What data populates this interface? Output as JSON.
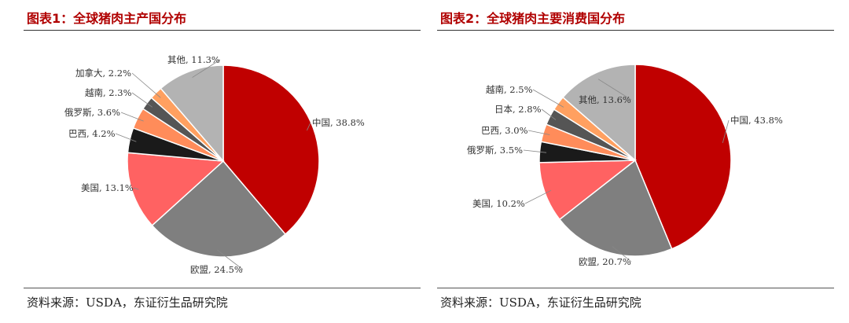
{
  "chart_data": [
    {
      "type": "pie",
      "title": "图表1：全球猪肉主产国分布",
      "source": "资料来源：USDA，东证衍生品研究院",
      "labels": [
        "中国",
        "欧盟",
        "美国",
        "巴西",
        "俄罗斯",
        "越南",
        "加拿大",
        "其他"
      ],
      "values": [
        38.8,
        24.5,
        13.1,
        4.2,
        3.6,
        2.3,
        2.2,
        11.3
      ],
      "value_labels": [
        "38.8%",
        "24.5%",
        "13.1%",
        "4.2%",
        "3.6%",
        "2.3%",
        "2.2%",
        "11.3%"
      ],
      "colors": [
        "#c00000",
        "#7f7f7f",
        "#ff6262",
        "#1a1a1a",
        "#ff8c5a",
        "#555555",
        "#ffa060",
        "#b3b3b3"
      ],
      "start": "12 o'clock",
      "direction": "clockwise"
    },
    {
      "type": "pie",
      "title": "图表2：全球猪肉主要消费国分布",
      "source": "资料来源：USDA，东证衍生品研究院",
      "labels": [
        "中国",
        "欧盟",
        "美国",
        "俄罗斯",
        "巴西",
        "日本",
        "越南",
        "其他"
      ],
      "values": [
        43.8,
        20.7,
        10.2,
        3.5,
        3.0,
        2.8,
        2.5,
        13.6
      ],
      "value_labels": [
        "43.8%",
        "20.7%",
        "10.2%",
        "3.5%",
        "3.0%",
        "2.8%",
        "2.5%",
        "13.6%"
      ],
      "colors": [
        "#c00000",
        "#7f7f7f",
        "#ff6262",
        "#1a1a1a",
        "#ff8c5a",
        "#555555",
        "#ffa060",
        "#b3b3b3"
      ],
      "start": "12 o'clock",
      "direction": "clockwise"
    }
  ]
}
